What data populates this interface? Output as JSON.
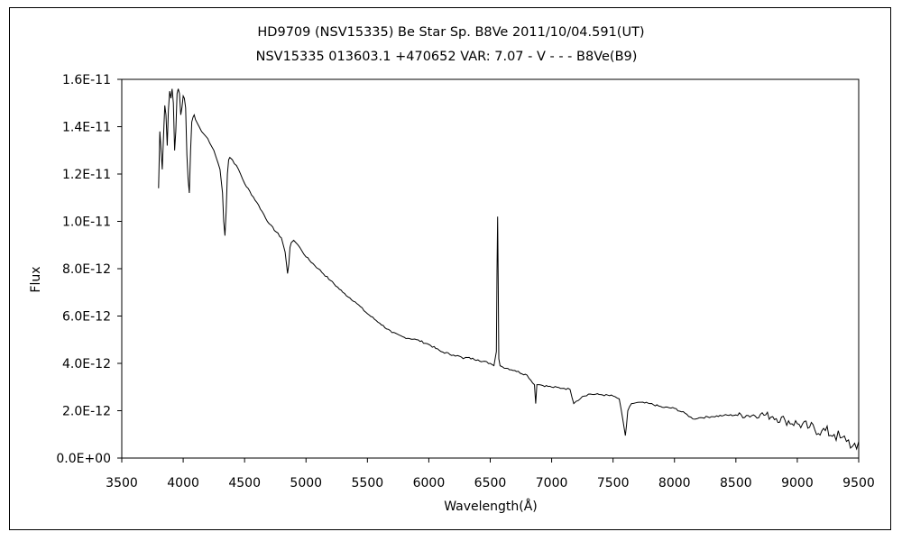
{
  "chart_data": {
    "type": "line",
    "title": "HD9709 (NSV15335)    Be Star    Sp. B8Ve     2011/10/04.591(UT)",
    "subtitle": "NSV15335 013603.1 +470652 VAR: 7.07 - V - - - B8Ve(B9)",
    "xlabel": "Wavelength(Å)",
    "ylabel": "Flux",
    "xlim": [
      3500,
      9500
    ],
    "ylim": [
      0,
      1.6e-11
    ],
    "xticks": [
      3500,
      4000,
      4500,
      5000,
      5500,
      6000,
      6500,
      7000,
      7500,
      8000,
      8500,
      9000,
      9500
    ],
    "xtick_labels": [
      "3500",
      "4000",
      "4500",
      "5000",
      "5500",
      "6000",
      "6500",
      "7000",
      "7500",
      "8000",
      "8500",
      "9000",
      "9500"
    ],
    "yticks": [
      0,
      2e-12,
      4e-12,
      6e-12,
      8e-12,
      1e-11,
      1.2e-11,
      1.4e-11,
      1.6e-11
    ],
    "ytick_labels": [
      "0.0E+00",
      "2.0E-12",
      "4.0E-12",
      "6.0E-12",
      "8.0E-12",
      "1.0E-11",
      "1.2E-11",
      "1.4E-11",
      "1.6E-11"
    ],
    "grid": false,
    "legend": "none",
    "line_color": "#000000",
    "series": [
      {
        "x": [
          3800,
          3810,
          3820,
          3830,
          3840,
          3850,
          3860,
          3870,
          3880,
          3890,
          3900,
          3910,
          3920,
          3930,
          3940,
          3950,
          3960,
          3970,
          3980,
          3990,
          4000,
          4010,
          4020,
          4030,
          4040,
          4050,
          4060,
          4070,
          4080,
          4090,
          4100,
          4110,
          4120,
          4130,
          4140,
          4150,
          4200,
          4250,
          4300,
          4320,
          4330,
          4340,
          4350,
          4360,
          4370,
          4380,
          4400,
          4450,
          4500,
          4600,
          4700,
          4800,
          4830,
          4850,
          4860,
          4870,
          4880,
          4900,
          4950,
          5000,
          5100,
          5200,
          5300,
          5400,
          5500,
          5600,
          5700,
          5800,
          5900,
          6000,
          6100,
          6200,
          6250,
          6280,
          6300,
          6400,
          6500,
          6530,
          6550,
          6555,
          6560,
          6565,
          6570,
          6580,
          6600,
          6700,
          6800,
          6860,
          6870,
          6880,
          6900,
          7000,
          7100,
          7150,
          7180,
          7200,
          7250,
          7300,
          7400,
          7500,
          7550,
          7580,
          7600,
          7610,
          7620,
          7650,
          7700,
          7800,
          7900,
          8000,
          8100,
          8150,
          8200,
          8300,
          8400,
          8500,
          8600,
          8700,
          8800,
          8900,
          9000,
          9100,
          9200,
          9300,
          9350,
          9400,
          9450,
          9500
        ],
        "values": [
          1.14e-11,
          1.38e-11,
          1.3e-11,
          1.22e-11,
          1.36e-11,
          1.49e-11,
          1.45e-11,
          1.32e-11,
          1.47e-11,
          1.55e-11,
          1.52e-11,
          1.56e-11,
          1.5e-11,
          1.3e-11,
          1.38e-11,
          1.54e-11,
          1.56e-11,
          1.54e-11,
          1.45e-11,
          1.48e-11,
          1.53e-11,
          1.52e-11,
          1.48e-11,
          1.28e-11,
          1.18e-11,
          1.12e-11,
          1.3e-11,
          1.42e-11,
          1.44e-11,
          1.45e-11,
          1.43e-11,
          1.42e-11,
          1.41e-11,
          1.4e-11,
          1.39e-11,
          1.38e-11,
          1.35e-11,
          1.3e-11,
          1.22e-11,
          1.12e-11,
          1e-11,
          9.4e-12,
          1.04e-11,
          1.2e-11,
          1.26e-11,
          1.27e-11,
          1.26e-11,
          1.22e-11,
          1.16e-11,
          1.08e-11,
          9.9e-12,
          9.3e-12,
          8.7e-12,
          7.8e-12,
          8.2e-12,
          8.9e-12,
          9.1e-12,
          9.2e-12,
          8.9e-12,
          8.5e-12,
          8e-12,
          7.5e-12,
          7e-12,
          6.6e-12,
          6.1e-12,
          5.7e-12,
          5.3e-12,
          5.1e-12,
          5e-12,
          4.8e-12,
          4.5e-12,
          4.35e-12,
          4.3e-12,
          4.2e-12,
          4.25e-12,
          4.15e-12,
          4e-12,
          3.9e-12,
          4.5e-12,
          7.9e-12,
          1.02e-11,
          7.2e-12,
          4.2e-12,
          3.9e-12,
          3.85e-12,
          3.7e-12,
          3.5e-12,
          3.1e-12,
          2.3e-12,
          3.1e-12,
          3.1e-12,
          3e-12,
          2.95e-12,
          2.9e-12,
          2.3e-12,
          2.4e-12,
          2.6e-12,
          2.7e-12,
          2.68e-12,
          2.62e-12,
          2.5e-12,
          1.6e-12,
          9.5e-13,
          1.4e-12,
          2e-12,
          2.3e-12,
          2.35e-12,
          2.3e-12,
          2.15e-12,
          2.1e-12,
          1.85e-12,
          1.65e-12,
          1.7e-12,
          1.75e-12,
          1.8e-12,
          1.82e-12,
          1.8e-12,
          1.85e-12,
          1.75e-12,
          1.6e-12,
          1.45e-12,
          1.3e-12,
          1.15e-12,
          1e-12,
          8.5e-13,
          7e-13,
          5e-13,
          7e-13
        ]
      }
    ]
  }
}
